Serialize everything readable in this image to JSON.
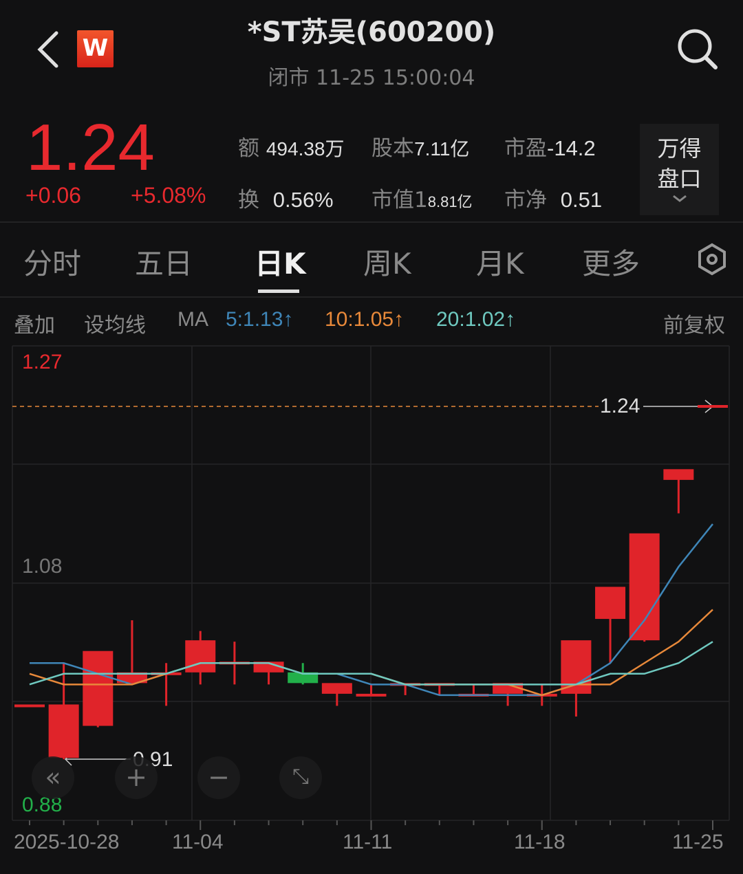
{
  "header": {
    "title": "*ST苏吴(600200)",
    "subtitle": "闭市 11-25 15:00:04",
    "logo_text": "W",
    "back_icon": "chevron-left-icon",
    "search_icon": "search-icon"
  },
  "quote": {
    "price": "1.24",
    "change": "+0.06",
    "change_pct": "+5.08%",
    "stats": [
      {
        "label": "额",
        "value": "494.38万"
      },
      {
        "label": "股本",
        "value": "7.11亿"
      },
      {
        "label": "市盈",
        "value": "-14.2"
      },
      {
        "label": "换",
        "value": "0.56%"
      },
      {
        "label": "市值1",
        "value": "8.81亿"
      },
      {
        "label": "市净",
        "value": "0.51"
      }
    ],
    "wind_button": {
      "line1": "万得",
      "line2": "盘口"
    }
  },
  "tabs": [
    {
      "label": "分时"
    },
    {
      "label": "五日"
    },
    {
      "label": "日K",
      "active": true
    },
    {
      "label": "周K"
    },
    {
      "label": "月K"
    },
    {
      "label": "更多"
    }
  ],
  "toolbar": {
    "overlay": "叠加",
    "set_ma": "设均线",
    "ma_label": "MA",
    "ma5": "5:1.13↑",
    "ma10": "10:1.05↑",
    "ma20": "20:1.02↑",
    "adjust": "前复权"
  },
  "colors": {
    "up": "#e0242a",
    "down": "#22b04a",
    "ma5": "#3f86b8",
    "ma10": "#e8893a",
    "ma20": "#6fc9c0",
    "background": "#111112"
  },
  "chart_data": {
    "type": "candlestick",
    "y_labels": {
      "top": "1.27",
      "middle": "1.08",
      "bottom": "0.88"
    },
    "last_price_label": "1.24",
    "low_marker_label": "0.91",
    "ylim": [
      0.88,
      1.27
    ],
    "x_tick_labels": [
      "2025-10-28",
      "11-04",
      "11-11",
      "11-18",
      "11-25"
    ],
    "dates": [
      "10-28",
      "10-29",
      "10-30",
      "10-31",
      "11-03",
      "11-04",
      "11-05",
      "11-06",
      "11-07",
      "11-10",
      "11-11",
      "11-12",
      "11-13",
      "11-14",
      "11-17",
      "11-18",
      "11-19",
      "11-20",
      "11-21",
      "11-24",
      "11-25"
    ],
    "ohlc": [
      [
        0.96,
        0.96,
        0.96,
        0.96
      ],
      [
        0.91,
        1.0,
        0.91,
        0.96
      ],
      [
        0.94,
        1.01,
        0.94,
        1.01
      ],
      [
        0.98,
        1.04,
        0.98,
        0.99
      ],
      [
        0.99,
        1.0,
        0.96,
        0.99
      ],
      [
        0.99,
        1.03,
        0.98,
        1.02
      ],
      [
        1.0,
        1.02,
        0.98,
        1.0
      ],
      [
        0.99,
        1.0,
        0.98,
        1.0
      ],
      [
        0.99,
        1.0,
        0.98,
        0.98
      ],
      [
        0.97,
        0.98,
        0.96,
        0.98
      ],
      [
        0.97,
        0.98,
        0.97,
        0.97
      ],
      [
        0.98,
        0.98,
        0.97,
        0.98
      ],
      [
        0.98,
        0.98,
        0.97,
        0.98
      ],
      [
        0.97,
        0.98,
        0.97,
        0.97
      ],
      [
        0.97,
        0.98,
        0.96,
        0.98
      ],
      [
        0.97,
        0.98,
        0.96,
        0.97
      ],
      [
        0.97,
        1.02,
        0.95,
        1.02
      ],
      [
        1.04,
        1.07,
        1.0,
        1.07
      ],
      [
        1.02,
        1.12,
        1.02,
        1.12
      ],
      [
        1.17,
        1.18,
        1.14,
        1.18
      ],
      [
        1.24,
        1.24,
        1.24,
        1.24
      ]
    ],
    "ma5": [
      1.0,
      1.0,
      0.99,
      0.98,
      0.99,
      1.0,
      1.0,
      1.0,
      0.99,
      0.99,
      0.98,
      0.98,
      0.97,
      0.97,
      0.97,
      0.97,
      0.98,
      1.0,
      1.04,
      1.09,
      1.13
    ],
    "ma10": [
      0.99,
      0.98,
      0.98,
      0.98,
      0.99,
      1.0,
      1.0,
      1.0,
      0.99,
      0.99,
      0.99,
      0.98,
      0.98,
      0.98,
      0.98,
      0.97,
      0.98,
      0.98,
      1.0,
      1.02,
      1.05
    ],
    "ma20": [
      0.98,
      0.99,
      0.99,
      0.99,
      0.99,
      1.0,
      1.0,
      1.0,
      0.99,
      0.99,
      0.99,
      0.98,
      0.98,
      0.98,
      0.98,
      0.98,
      0.98,
      0.99,
      0.99,
      1.0,
      1.02
    ],
    "grid": true
  },
  "zoom_controls": [
    "scroll-left-icon",
    "zoom-in-icon",
    "zoom-out-icon",
    "fullscreen-icon"
  ]
}
